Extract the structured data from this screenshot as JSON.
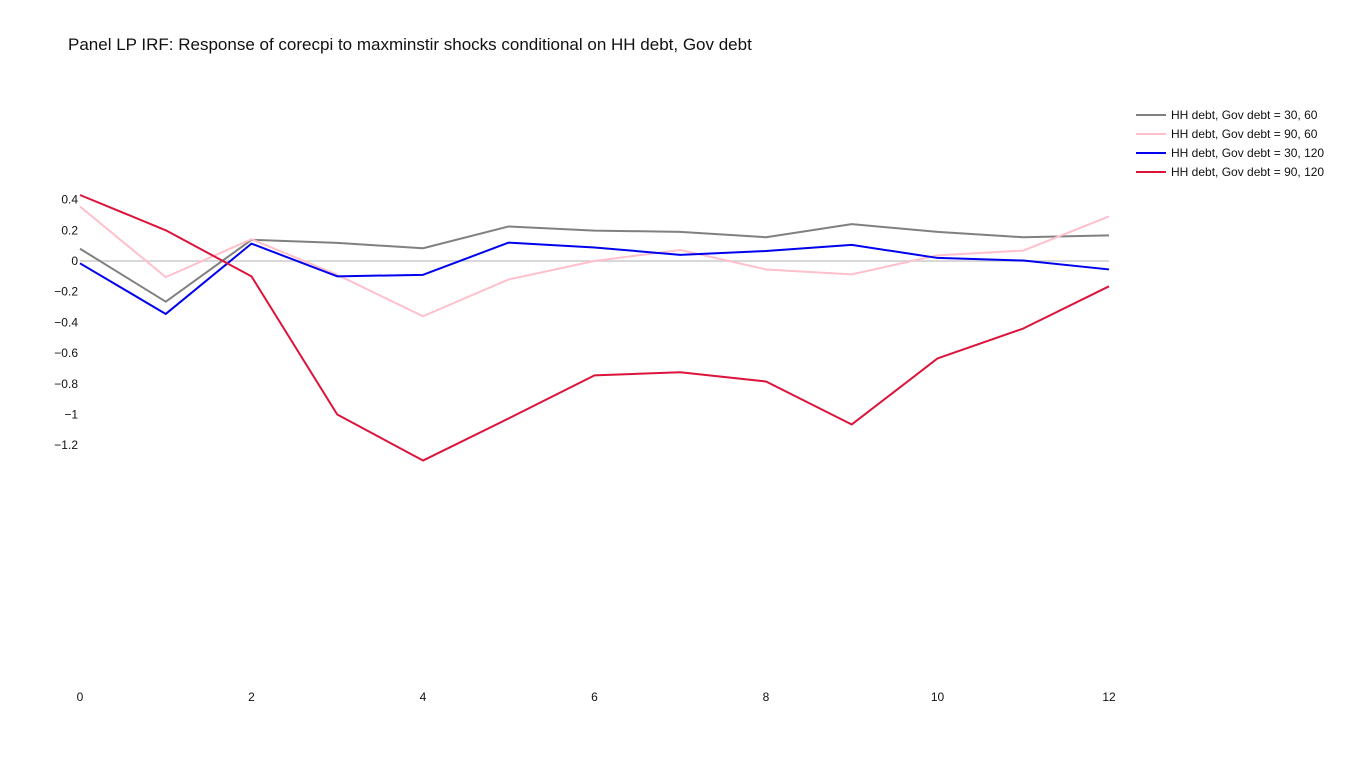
{
  "chart_data": {
    "type": "line",
    "title": "Panel LP IRF: Response of corecpi to maxminstir shocks conditional on HH debt, Gov debt",
    "xlabel": "",
    "ylabel": "",
    "x": [
      0,
      1,
      2,
      3,
      4,
      5,
      6,
      7,
      8,
      9,
      10,
      11,
      12
    ],
    "xlim": [
      0,
      12
    ],
    "ylim": [
      -1.4,
      0.5
    ],
    "x_ticks": [
      "0",
      "2",
      "4",
      "6",
      "8",
      "10",
      "12"
    ],
    "y_ticks": [
      "0.4",
      "0.2",
      "0",
      "−0.2",
      "−0.4",
      "−0.6",
      "−0.8",
      "−1",
      "−1.2"
    ],
    "grid": false,
    "zero_line": true,
    "legend_position": "top-right",
    "series": [
      {
        "name": "HH debt, Gov debt = 30, 60",
        "color": "#808080",
        "values": [
          0.08,
          -0.265,
          0.138,
          0.118,
          0.083,
          0.225,
          0.198,
          0.19,
          0.155,
          0.24,
          0.19,
          0.155,
          0.167
        ]
      },
      {
        "name": "HH debt, Gov debt = 90, 60",
        "color": "#ffc0cb",
        "values": [
          0.355,
          -0.105,
          0.142,
          -0.09,
          -0.36,
          -0.12,
          0.0,
          0.072,
          -0.055,
          -0.087,
          0.037,
          0.068,
          0.29
        ]
      },
      {
        "name": "HH debt, Gov debt = 30, 120",
        "color": "#0000ee",
        "values": [
          -0.015,
          -0.345,
          0.113,
          -0.1,
          -0.09,
          0.12,
          0.088,
          0.04,
          0.065,
          0.105,
          0.02,
          0.003,
          -0.055
        ]
      },
      {
        "name": "HH debt, Gov debt = 90, 120",
        "color": "#dc143c",
        "values": [
          0.43,
          0.2,
          -0.1,
          -1.0,
          -1.3,
          -1.025,
          -0.745,
          -0.725,
          -0.785,
          -1.065,
          -0.635,
          -0.44,
          -0.165
        ]
      }
    ]
  }
}
